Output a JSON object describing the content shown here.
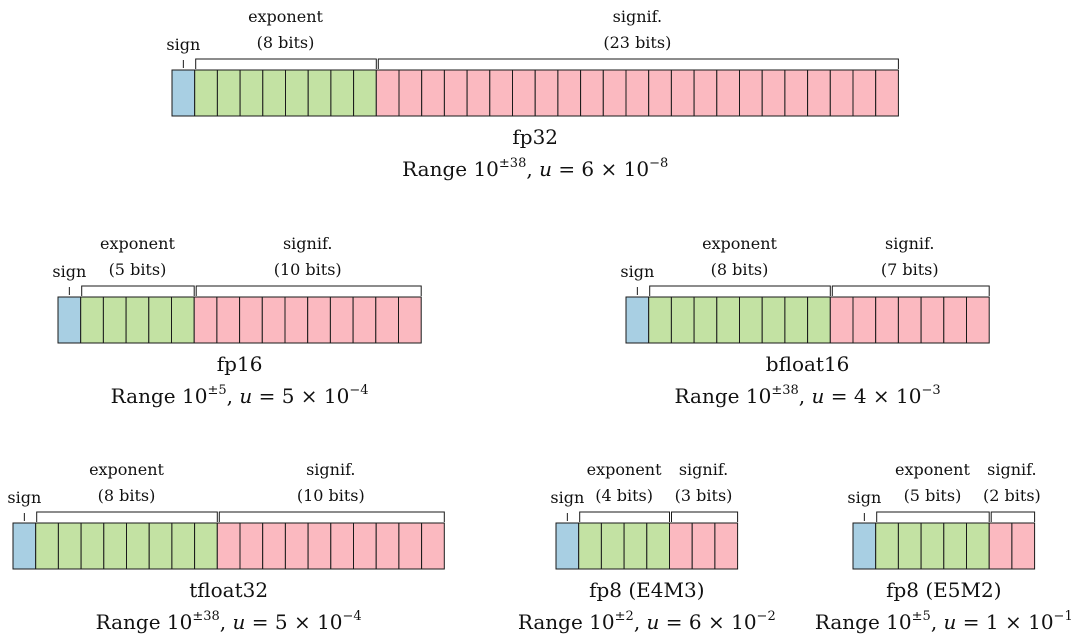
{
  "colors": {
    "sign": "#a8cfe3",
    "exponent": "#c3e2a3",
    "significand": "#fbb9c0",
    "stroke": "#1a1a1a"
  },
  "formats": [
    {
      "id": "fp32",
      "name": "fp32",
      "sign_label": "sign",
      "exp_label": "exponent",
      "exp_bits_label": "(8 bits)",
      "sig_label": "signif.",
      "sig_bits_label": "(23 bits)",
      "exp_bits": 8,
      "sig_bits": 23,
      "range_text": "Range 10",
      "range_exp": "±38",
      "u_label": "u",
      "u_mantissa": "= 6 × 10",
      "u_exp": "−8"
    },
    {
      "id": "fp16",
      "name": "fp16",
      "sign_label": "sign",
      "exp_label": "exponent",
      "exp_bits_label": "(5 bits)",
      "sig_label": "signif.",
      "sig_bits_label": "(10 bits)",
      "exp_bits": 5,
      "sig_bits": 10,
      "range_text": "Range 10",
      "range_exp": "±5",
      "u_label": "u",
      "u_mantissa": "= 5 × 10",
      "u_exp": "−4"
    },
    {
      "id": "bfloat16",
      "name": "bfloat16",
      "sign_label": "sign",
      "exp_label": "exponent",
      "exp_bits_label": "(8 bits)",
      "sig_label": "signif.",
      "sig_bits_label": "(7 bits)",
      "exp_bits": 8,
      "sig_bits": 7,
      "range_text": "Range 10",
      "range_exp": "±38",
      "u_label": "u",
      "u_mantissa": "= 4 × 10",
      "u_exp": "−3"
    },
    {
      "id": "tfloat32",
      "name": "tfloat32",
      "sign_label": "sign",
      "exp_label": "exponent",
      "exp_bits_label": "(8 bits)",
      "sig_label": "signif.",
      "sig_bits_label": "(10 bits)",
      "exp_bits": 8,
      "sig_bits": 10,
      "range_text": "Range 10",
      "range_exp": "±38",
      "u_label": "u",
      "u_mantissa": "= 5 × 10",
      "u_exp": "−4"
    },
    {
      "id": "fp8-e4m3",
      "name": "fp8 (E4M3)",
      "sign_label": "sign",
      "exp_label": "exponent",
      "exp_bits_label": "(4 bits)",
      "sig_label": "signif.",
      "sig_bits_label": "(3 bits)",
      "exp_bits": 4,
      "sig_bits": 3,
      "range_text": "Range 10",
      "range_exp": "±2",
      "u_label": "u",
      "u_mantissa": "= 6 × 10",
      "u_exp": "−2"
    },
    {
      "id": "fp8-e5m2",
      "name": "fp8 (E5M2)",
      "sign_label": "sign",
      "exp_label": "exponent",
      "exp_bits_label": "(5 bits)",
      "sig_label": "signif.",
      "sig_bits_label": "(2 bits)",
      "exp_bits": 5,
      "sig_bits": 2,
      "range_text": "Range 10",
      "range_exp": "±5",
      "u_label": "u",
      "u_mantissa": "= 1 × 10",
      "u_exp": "−1"
    }
  ]
}
